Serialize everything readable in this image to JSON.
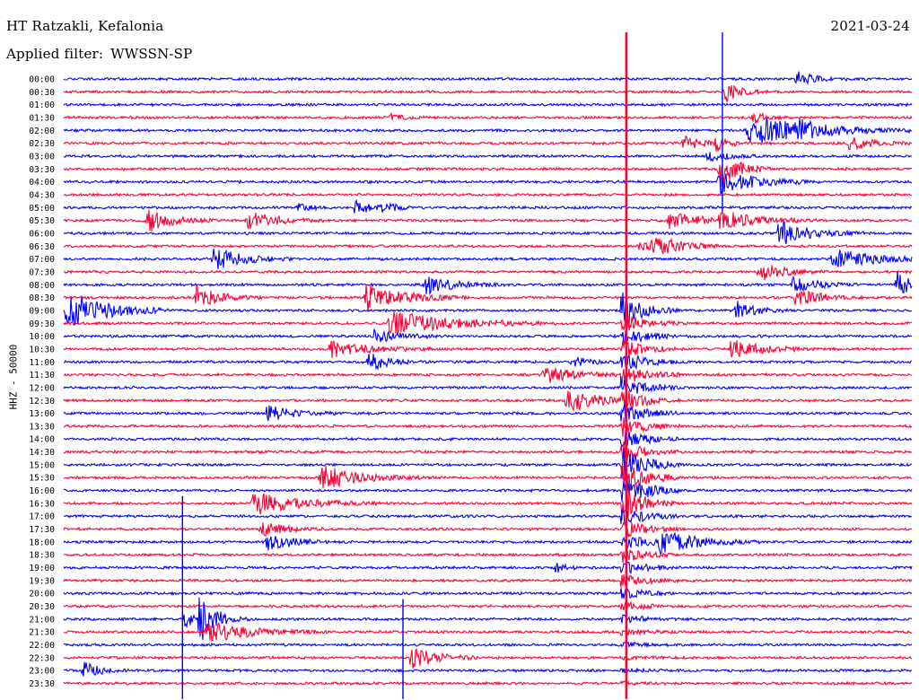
{
  "header": {
    "station": "HT Ratzakli, Kefalonia",
    "date": "2021-03-24",
    "filter_label": "Applied filter:",
    "filter_value": "WWSSN-SP",
    "channel": "HHZ - 50000"
  },
  "colors": {
    "even_hour_trace": "#0000ff",
    "half_hour_trace": "#ff0033",
    "background": "#ffffff"
  },
  "chart_data": {
    "type": "helicorder",
    "row_labels": [
      "00:00",
      "00:30",
      "01:00",
      "01:30",
      "02:00",
      "02:30",
      "03:00",
      "03:30",
      "04:00",
      "04:30",
      "05:00",
      "05:30",
      "06:00",
      "06:30",
      "07:00",
      "07:30",
      "08:00",
      "08:30",
      "09:00",
      "09:30",
      "10:00",
      "10:30",
      "11:00",
      "11:30",
      "12:00",
      "12:30",
      "13:00",
      "13:30",
      "14:00",
      "14:30",
      "15:00",
      "15:30",
      "16:00",
      "16:30",
      "17:00",
      "17:30",
      "18:00",
      "18:30",
      "19:00",
      "19:30",
      "20:00",
      "20:30",
      "21:00",
      "21:30",
      "22:00",
      "22:30",
      "23:00",
      "23:30"
    ],
    "minutes_per_row": 30,
    "events": [
      {
        "row": 0,
        "minute": 25.9,
        "amp": 0.9,
        "dur": 0.6
      },
      {
        "row": 1,
        "minute": 23.4,
        "amp": 1.2,
        "dur": 0.5
      },
      {
        "row": 3,
        "minute": 11.6,
        "amp": 0.4,
        "dur": 0.4
      },
      {
        "row": 3,
        "minute": 24.4,
        "amp": 0.6,
        "dur": 0.5
      },
      {
        "row": 4,
        "minute": 24.2,
        "amp": 1.8,
        "dur": 2.0
      },
      {
        "row": 4,
        "minute": 26.0,
        "amp": 0.7,
        "dur": 0.5
      },
      {
        "row": 5,
        "minute": 21.9,
        "amp": 0.8,
        "dur": 0.7
      },
      {
        "row": 5,
        "minute": 27.8,
        "amp": 0.8,
        "dur": 0.8
      },
      {
        "row": 5,
        "minute": 23.1,
        "amp": 1.0,
        "dur": 0.3
      },
      {
        "row": 6,
        "minute": 22.8,
        "amp": 0.5,
        "dur": 0.7
      },
      {
        "row": 7,
        "minute": 23.2,
        "amp": 2.2,
        "dur": 0.6
      },
      {
        "row": 8,
        "minute": 23.2,
        "amp": 1.4,
        "dur": 1.2
      },
      {
        "row": 10,
        "minute": 10.3,
        "amp": 0.9,
        "dur": 0.5
      },
      {
        "row": 10,
        "minute": 11.3,
        "amp": 0.5,
        "dur": 0.5
      },
      {
        "row": 10,
        "minute": 8.3,
        "amp": 0.6,
        "dur": 0.4
      },
      {
        "row": 11,
        "minute": 3.0,
        "amp": 1.3,
        "dur": 0.8
      },
      {
        "row": 11,
        "minute": 6.5,
        "amp": 1.0,
        "dur": 1.0
      },
      {
        "row": 11,
        "minute": 21.4,
        "amp": 1.0,
        "dur": 1.0
      },
      {
        "row": 11,
        "minute": 23.2,
        "amp": 1.1,
        "dur": 1.2
      },
      {
        "row": 12,
        "minute": 25.3,
        "amp": 1.4,
        "dur": 1.0
      },
      {
        "row": 13,
        "minute": 20.4,
        "amp": 1.0,
        "dur": 1.0
      },
      {
        "row": 13,
        "minute": 21.0,
        "amp": 0.6,
        "dur": 0.8
      },
      {
        "row": 14,
        "minute": 5.3,
        "amp": 1.3,
        "dur": 1.0
      },
      {
        "row": 14,
        "minute": 27.2,
        "amp": 1.1,
        "dur": 1.5
      },
      {
        "row": 15,
        "minute": 24.6,
        "amp": 1.2,
        "dur": 0.8
      },
      {
        "row": 16,
        "minute": 12.8,
        "amp": 1.0,
        "dur": 1.0
      },
      {
        "row": 16,
        "minute": 25.8,
        "amp": 0.9,
        "dur": 0.8
      },
      {
        "row": 16,
        "minute": 29.5,
        "amp": 1.6,
        "dur": 0.4
      },
      {
        "row": 17,
        "minute": 4.7,
        "amp": 1.2,
        "dur": 0.8
      },
      {
        "row": 17,
        "minute": 10.7,
        "amp": 1.6,
        "dur": 1.2
      },
      {
        "row": 17,
        "minute": 25.9,
        "amp": 1.0,
        "dur": 0.8
      },
      {
        "row": 18,
        "minute": 0.1,
        "amp": 2.4,
        "dur": 1.2
      },
      {
        "row": 18,
        "minute": 19.7,
        "amp": 1.0,
        "dur": 0.6
      },
      {
        "row": 18,
        "minute": 23.8,
        "amp": 1.0,
        "dur": 0.6
      },
      {
        "row": 19,
        "minute": 11.5,
        "amp": 1.4,
        "dur": 2.0
      },
      {
        "row": 20,
        "minute": 11.0,
        "amp": 0.8,
        "dur": 0.8
      },
      {
        "row": 21,
        "minute": 9.4,
        "amp": 1.0,
        "dur": 1.2
      },
      {
        "row": 21,
        "minute": 23.6,
        "amp": 1.2,
        "dur": 1.0
      },
      {
        "row": 22,
        "minute": 10.8,
        "amp": 1.0,
        "dur": 0.7
      },
      {
        "row": 22,
        "minute": 18.0,
        "amp": 0.6,
        "dur": 0.6
      },
      {
        "row": 23,
        "minute": 17.0,
        "amp": 1.0,
        "dur": 1.0
      },
      {
        "row": 25,
        "minute": 17.8,
        "amp": 1.4,
        "dur": 1.0
      },
      {
        "row": 26,
        "minute": 7.2,
        "amp": 1.0,
        "dur": 0.8
      },
      {
        "row": 31,
        "minute": 9.1,
        "amp": 1.4,
        "dur": 1.2
      },
      {
        "row": 33,
        "minute": 6.7,
        "amp": 1.3,
        "dur": 1.5
      },
      {
        "row": 35,
        "minute": 7.0,
        "amp": 0.8,
        "dur": 0.8
      },
      {
        "row": 36,
        "minute": 7.2,
        "amp": 1.0,
        "dur": 0.8
      },
      {
        "row": 36,
        "minute": 21.1,
        "amp": 1.4,
        "dur": 1.2
      },
      {
        "row": 38,
        "minute": 17.4,
        "amp": 0.5,
        "dur": 0.4
      },
      {
        "row": 42,
        "minute": 4.3,
        "amp": 0.8,
        "dur": 0.5
      },
      {
        "row": 42,
        "minute": 4.8,
        "amp": 2.5,
        "dur": 0.6
      },
      {
        "row": 43,
        "minute": 5.0,
        "amp": 1.2,
        "dur": 1.5
      },
      {
        "row": 45,
        "minute": 12.3,
        "amp": 1.3,
        "dur": 0.8
      },
      {
        "row": 46,
        "minute": 0.7,
        "amp": 1.0,
        "dur": 0.5
      }
    ],
    "teleseism": {
      "minute": 19.9,
      "start_row": 18,
      "end_row": 47
    },
    "spikes": [
      {
        "minute": 19.9,
        "from_row": 0,
        "to_row": 47
      },
      {
        "minute": 23.3,
        "from_row": 0,
        "to_row": 9
      },
      {
        "minute": 4.2,
        "from_row": 33,
        "to_row": 47
      },
      {
        "minute": 12.0,
        "from_row": 41,
        "to_row": 47
      }
    ]
  }
}
